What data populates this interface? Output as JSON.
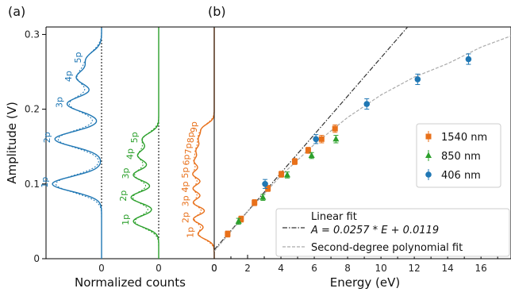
{
  "panel_labels": {
    "a": "(a)",
    "b": "(b)"
  },
  "y_axis": {
    "label": "Amplitude (V)",
    "range": [
      0,
      0.31
    ],
    "ticks": [
      0,
      0.1,
      0.2,
      0.3
    ],
    "tick_labels": [
      "0",
      "0.1",
      "0.2",
      "0.3"
    ]
  },
  "panel_a": {
    "xlabel": "Normalized counts",
    "zero_label": "0",
    "traces": [
      {
        "color": "#1f77b4",
        "peak_labels": [
          "1p",
          "2p",
          "3p",
          "4p",
          "5p"
        ]
      },
      {
        "color": "#2ca02c",
        "peak_labels": [
          "1p",
          "2p",
          "3p",
          "4p",
          "5p"
        ]
      },
      {
        "color": "#e8701a",
        "peak_labels": [
          "1p",
          "2p",
          "3p",
          "4p",
          "5p",
          "6p",
          "7p",
          "8p",
          "9p"
        ]
      }
    ]
  },
  "chart_data": {
    "type": "scatter",
    "xlabel": "Energy (eV)",
    "ylabel": "Amplitude (V)",
    "xlim": [
      0,
      17.8
    ],
    "ylim": [
      0,
      0.31
    ],
    "xticks": [
      0,
      2,
      4,
      6,
      8,
      10,
      12,
      14,
      16
    ],
    "xtick_labels": [
      "0",
      "2",
      "4",
      "6",
      "8",
      "10",
      "12",
      "14",
      "16"
    ],
    "series": [
      {
        "name": "1540 nm",
        "color": "#e8701a",
        "marker": "square",
        "x": [
          0.805,
          1.61,
          2.415,
          3.22,
          4.025,
          4.83,
          5.635,
          6.44,
          7.245
        ],
        "y": [
          0.033,
          0.053,
          0.075,
          0.094,
          0.113,
          0.13,
          0.145,
          0.16,
          0.174
        ],
        "err": [
          0.004,
          0.004,
          0.004,
          0.004,
          0.004,
          0.004,
          0.004,
          0.005,
          0.005
        ]
      },
      {
        "name": "850 nm",
        "color": "#2ca02c",
        "marker": "triangle",
        "x": [
          1.46,
          2.92,
          4.38,
          5.84,
          7.3
        ],
        "y": [
          0.05,
          0.082,
          0.112,
          0.138,
          0.16
        ],
        "err": [
          0.004,
          0.004,
          0.004,
          0.004,
          0.005
        ]
      },
      {
        "name": "406 nm",
        "color": "#1f77b4",
        "marker": "circle",
        "x": [
          3.05,
          6.1,
          9.15,
          12.2,
          15.25
        ],
        "y": [
          0.1,
          0.16,
          0.207,
          0.24,
          0.267
        ],
        "err": [
          0.006,
          0.006,
          0.007,
          0.007,
          0.007
        ]
      }
    ],
    "fits": [
      {
        "name": "Linear fit",
        "equation": "A = 0.0257 * E + 0.0119",
        "slope": 0.0257,
        "intercept": 0.0119,
        "style": "dashdot",
        "color": "#333333"
      },
      {
        "name": "Second-degree polynomial fit",
        "style": "dashed",
        "color": "#aaaaaa",
        "x": [
          0,
          2,
          4,
          6,
          8,
          10,
          12,
          14,
          16,
          17.8
        ],
        "y": [
          0.01,
          0.063,
          0.111,
          0.153,
          0.189,
          0.219,
          0.243,
          0.261,
          0.283,
          0.298
        ]
      }
    ]
  }
}
